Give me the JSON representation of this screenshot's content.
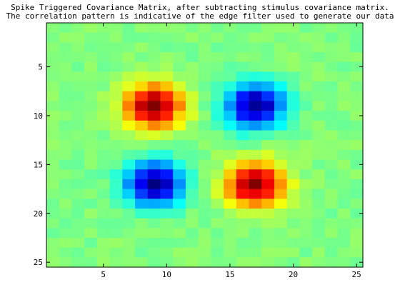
{
  "chart_data": {
    "type": "heatmap",
    "title_lines": [
      "Spike Triggered Covariance Matrix, after subtracting stimulus covariance matrix.",
      "The correlation pattern is indicative of the edge filter used to generate our data"
    ],
    "xlabel": "",
    "ylabel": "",
    "rows": 25,
    "cols": 25,
    "xlim": [
      0.5,
      25.5
    ],
    "ylim": [
      0.5,
      25.5
    ],
    "y_direction": "reversed",
    "xticks": [
      5,
      10,
      15,
      20,
      25
    ],
    "yticks": [
      5,
      10,
      15,
      20,
      25
    ],
    "colormap": "jet",
    "clim": [
      -1,
      1
    ],
    "pattern": {
      "blobs": [
        {
          "row": 9,
          "col": 9,
          "value": 1.0
        },
        {
          "row": 9,
          "col": 17,
          "value": -1.0
        },
        {
          "row": 17,
          "col": 9,
          "value": -1.0
        },
        {
          "row": 17,
          "col": 17,
          "value": 1.0
        }
      ],
      "sigma": 1.6,
      "background": 0.0,
      "noise": 0.05
    }
  }
}
